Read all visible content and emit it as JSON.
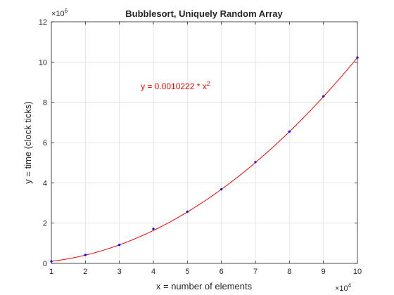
{
  "chart_data": {
    "type": "scatter",
    "title": "Bubblesort, Uniquely Random Array",
    "xlabel": "x = number of elements",
    "ylabel": "y = time (clock ticks)",
    "x_multiplier": "×10",
    "x_multiplier_exp": "4",
    "y_multiplier": "×10",
    "y_multiplier_exp": "6",
    "xlim": [
      1,
      10
    ],
    "ylim": [
      0,
      12
    ],
    "x_ticks": [
      "1",
      "2",
      "3",
      "4",
      "5",
      "6",
      "7",
      "8",
      "9",
      "10"
    ],
    "y_ticks": [
      "0",
      "2",
      "4",
      "6",
      "8",
      "10",
      "12"
    ],
    "grid": true,
    "series": [
      {
        "kind": "points",
        "color": "#0000ff",
        "x": [
          1,
          2,
          3,
          4,
          5,
          6,
          7,
          8,
          9,
          10
        ],
        "y": [
          0.1,
          0.42,
          0.92,
          1.72,
          2.57,
          3.68,
          5.03,
          6.55,
          8.3,
          10.22
        ]
      },
      {
        "kind": "fit",
        "color": "#ff0000",
        "coefficient": 0.0010222
      }
    ],
    "annotation": {
      "text": "y = 0.0010222 * x",
      "superscript": "2",
      "color": "#ff0000"
    },
    "colors": {
      "axes": "#262626",
      "grid": "#dfdfdf",
      "points": "#0000ff",
      "fit": "#ff0000"
    }
  }
}
